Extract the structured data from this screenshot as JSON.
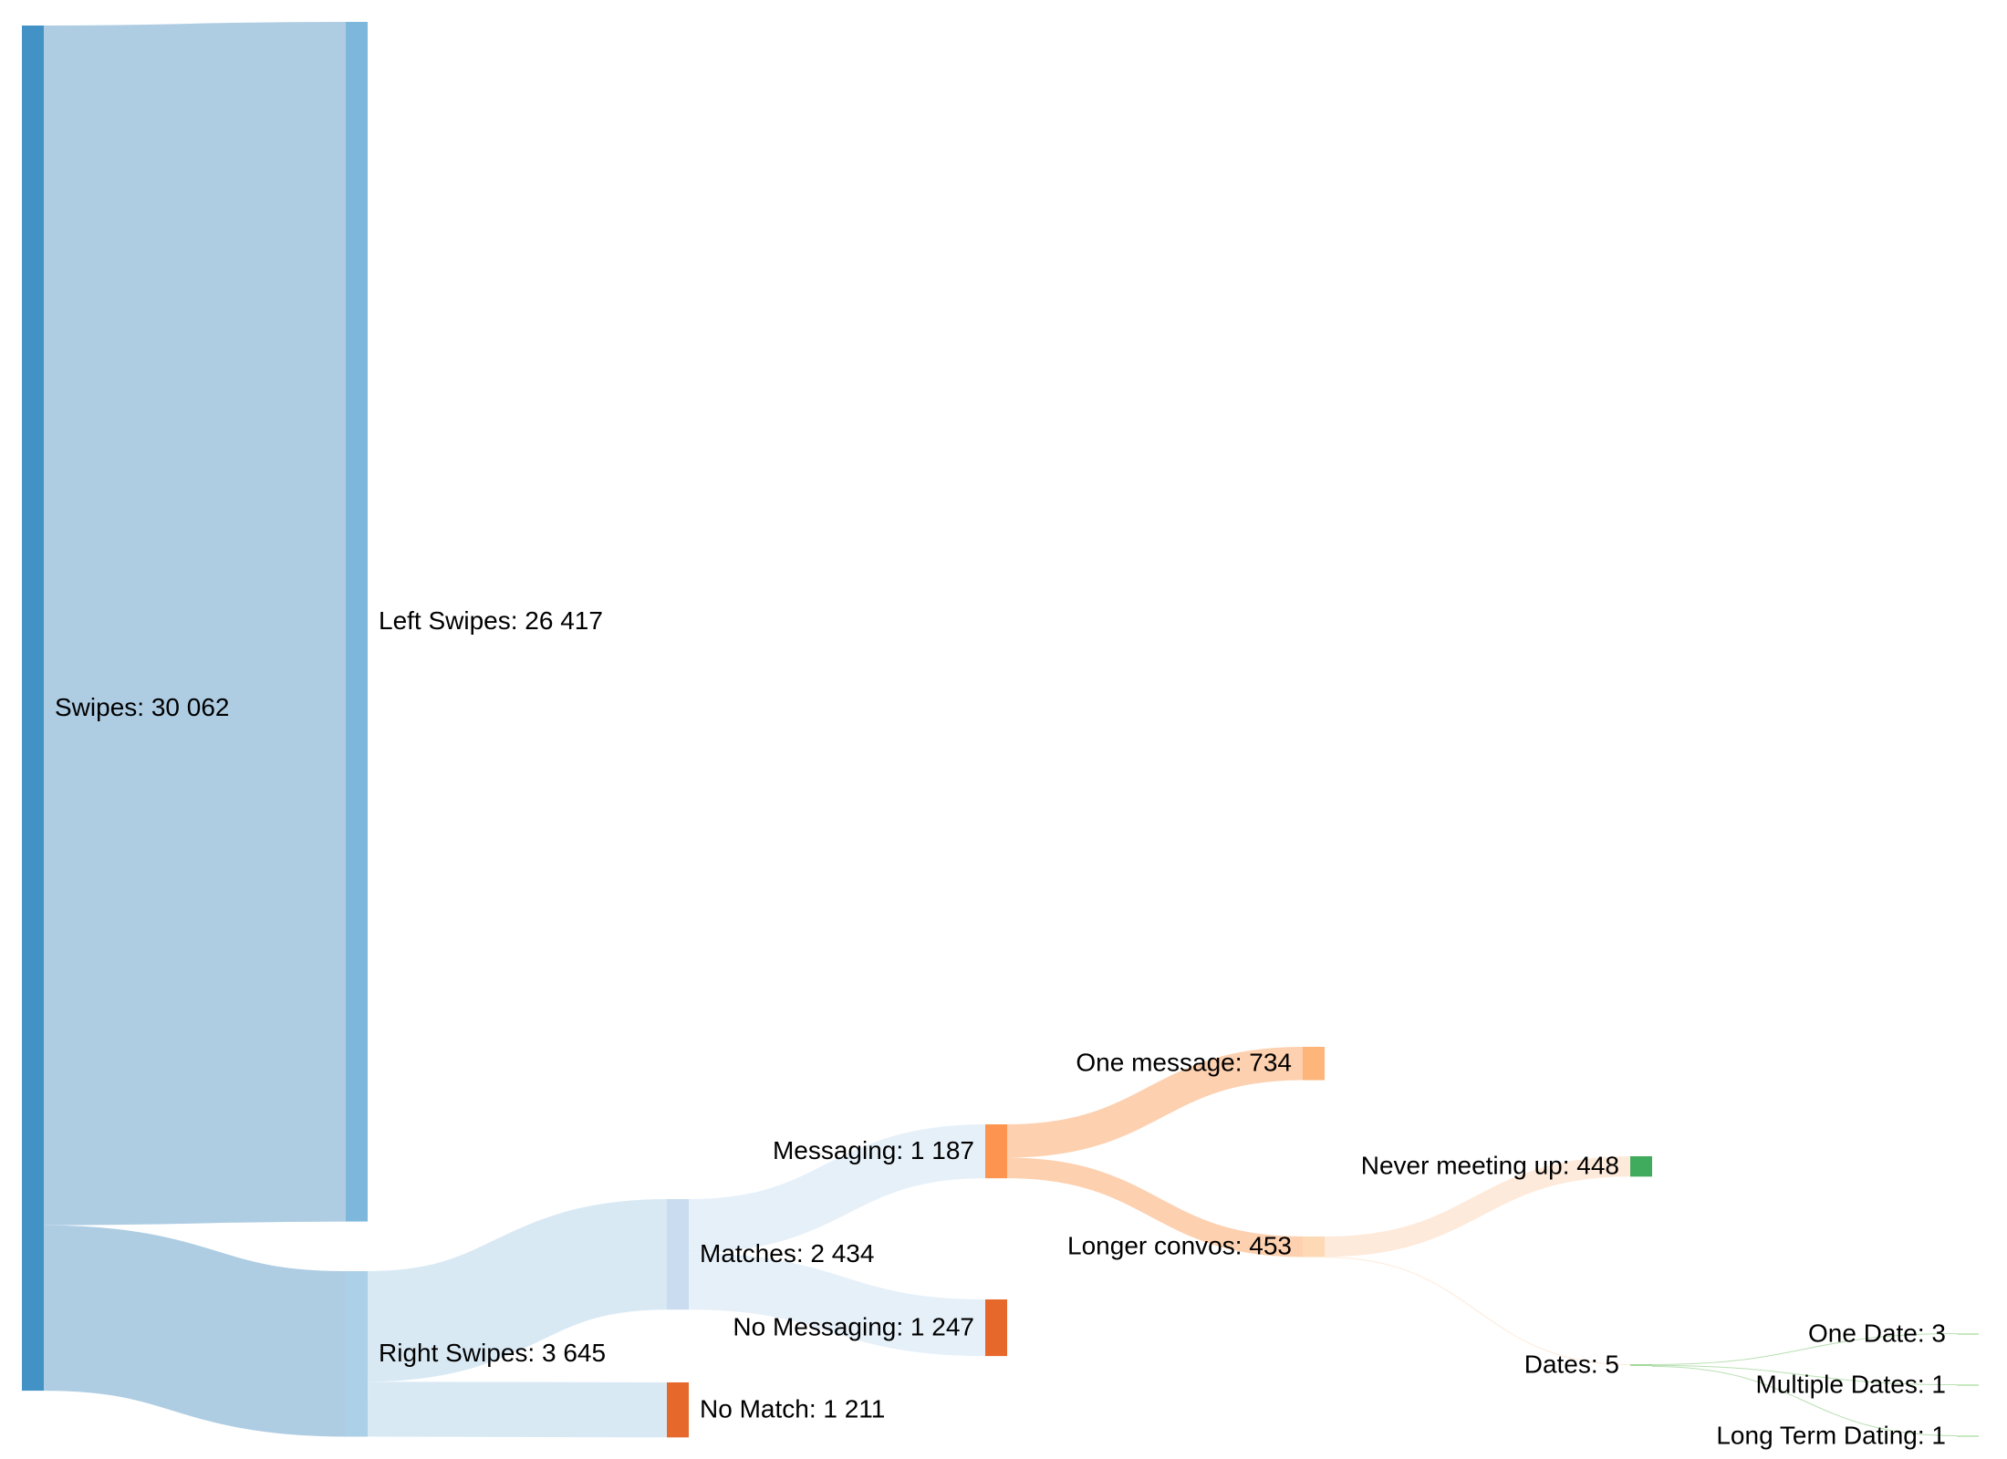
{
  "chart_data": {
    "type": "sankey",
    "nodes": [
      {
        "id": "swipes",
        "name": "Swipes",
        "value": "30 062",
        "color": "#4292c6"
      },
      {
        "id": "left",
        "name": "Left Swipes",
        "value": "26 417",
        "color": "#7db7dc"
      },
      {
        "id": "right",
        "name": "Right Swipes",
        "value": "3 645",
        "color": "#acd0e7"
      },
      {
        "id": "matches",
        "name": "Matches",
        "value": "2 434",
        "color": "#c9dcf0"
      },
      {
        "id": "nomatch",
        "name": "No Match",
        "value": "1 211",
        "color": "#e6682a"
      },
      {
        "id": "messaging",
        "name": "Messaging",
        "value": "1 187",
        "color": "#fd9550"
      },
      {
        "id": "nomessaging",
        "name": "No Messaging",
        "value": "1 247",
        "color": "#e6682a"
      },
      {
        "id": "onemsg",
        "name": "One message",
        "value": "734",
        "color": "#fdb57a"
      },
      {
        "id": "longer",
        "name": "Longer convos",
        "value": "453",
        "color": "#fdd9b5"
      },
      {
        "id": "never",
        "name": "Never meeting up",
        "value": "448",
        "color": "#41ab5d"
      },
      {
        "id": "dates",
        "name": "Dates",
        "value": "5",
        "color": "#a1d99b"
      },
      {
        "id": "onedate",
        "name": "One Date",
        "value": "3",
        "color": "#c7e9c0"
      },
      {
        "id": "multi",
        "name": "Multiple Dates",
        "value": "1",
        "color": "#c7e9c0"
      },
      {
        "id": "longterm",
        "name": "Long Term Dating",
        "value": "1",
        "color": "#c7e9c0"
      }
    ],
    "links": [
      {
        "source": "swipes",
        "target": "left",
        "value": 26417,
        "color": "#aecde3"
      },
      {
        "source": "swipes",
        "target": "right",
        "value": 3645,
        "color": "#aecde3"
      },
      {
        "source": "right",
        "target": "matches",
        "value": 2434,
        "color": "#d8e9f4"
      },
      {
        "source": "right",
        "target": "nomatch",
        "value": 1211,
        "color": "#d8e9f4"
      },
      {
        "source": "matches",
        "target": "messaging",
        "value": 1187,
        "color": "#e6f0f9"
      },
      {
        "source": "matches",
        "target": "nomessaging",
        "value": 1247,
        "color": "#e6f0f9"
      },
      {
        "source": "messaging",
        "target": "onemsg",
        "value": 734,
        "color": "#fdd0af"
      },
      {
        "source": "messaging",
        "target": "longer",
        "value": 453,
        "color": "#fdd0af"
      },
      {
        "source": "longer",
        "target": "never",
        "value": 448,
        "color": "#feeada"
      },
      {
        "source": "longer",
        "target": "dates",
        "value": 5,
        "color": "#feeada"
      },
      {
        "source": "dates",
        "target": "onedate",
        "value": 3,
        "color": "#b9e0b3"
      },
      {
        "source": "dates",
        "target": "multi",
        "value": 1,
        "color": "#b9e0b3"
      },
      {
        "source": "dates",
        "target": "longterm",
        "value": 1,
        "color": "#b9e0b3"
      }
    ]
  }
}
